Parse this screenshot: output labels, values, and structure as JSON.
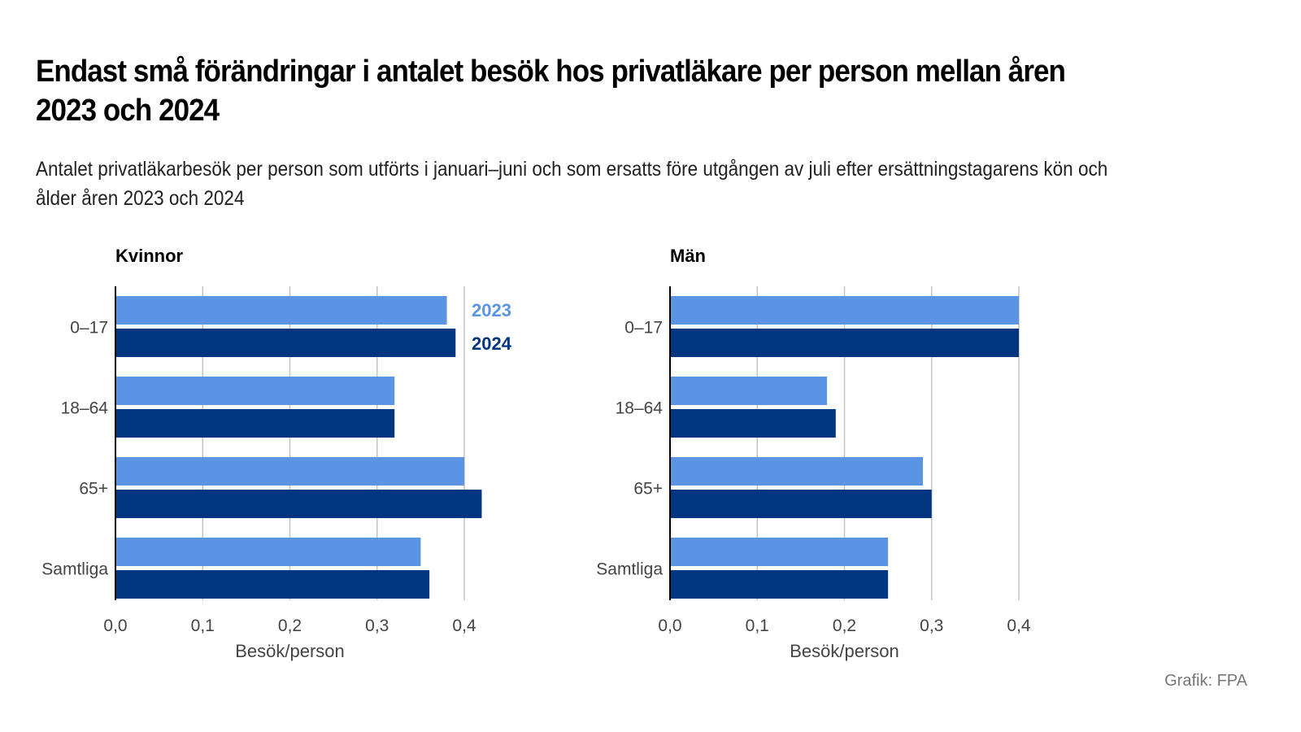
{
  "title": "Endast små förändringar i antalet besök hos privatläkare per person mellan åren 2023 och 2024",
  "subtitle": "Antalet privatläkarbesök per person som utförts i januari–juni och som ersatts före utgången av juli efter ersättningstagarens kön och ålder åren 2023 och 2024",
  "source": "Grafik: FPA",
  "colors": {
    "2023": "#5a94e2",
    "2024": "#00367f"
  },
  "chart_data": [
    {
      "type": "bar",
      "orientation": "horizontal",
      "title": "Kvinnor",
      "categories": [
        "0–17",
        "18–64",
        "65+",
        "Samtliga"
      ],
      "series": [
        {
          "name": "2023",
          "values": [
            0.38,
            0.32,
            0.4,
            0.35
          ]
        },
        {
          "name": "2024",
          "values": [
            0.39,
            0.32,
            0.42,
            0.36
          ]
        }
      ],
      "xlabel": "Besök/person",
      "ylabel": "",
      "xlim": [
        0,
        0.4
      ],
      "xticks": [
        "0,0",
        "0,1",
        "0,2",
        "0,3",
        "0,4"
      ],
      "grid": true,
      "legend": "top-right, inline next to first group",
      "legend_entries": [
        "2023",
        "2024"
      ]
    },
    {
      "type": "bar",
      "orientation": "horizontal",
      "title": "Män",
      "categories": [
        "0–17",
        "18–64",
        "65+",
        "Samtliga"
      ],
      "series": [
        {
          "name": "2023",
          "values": [
            0.4,
            0.18,
            0.29,
            0.25
          ]
        },
        {
          "name": "2024",
          "values": [
            0.4,
            0.19,
            0.3,
            0.25
          ]
        }
      ],
      "xlabel": "Besök/person",
      "ylabel": "",
      "xlim": [
        0,
        0.4
      ],
      "xticks": [
        "0,0",
        "0,1",
        "0,2",
        "0,3",
        "0,4"
      ],
      "grid": true
    }
  ]
}
